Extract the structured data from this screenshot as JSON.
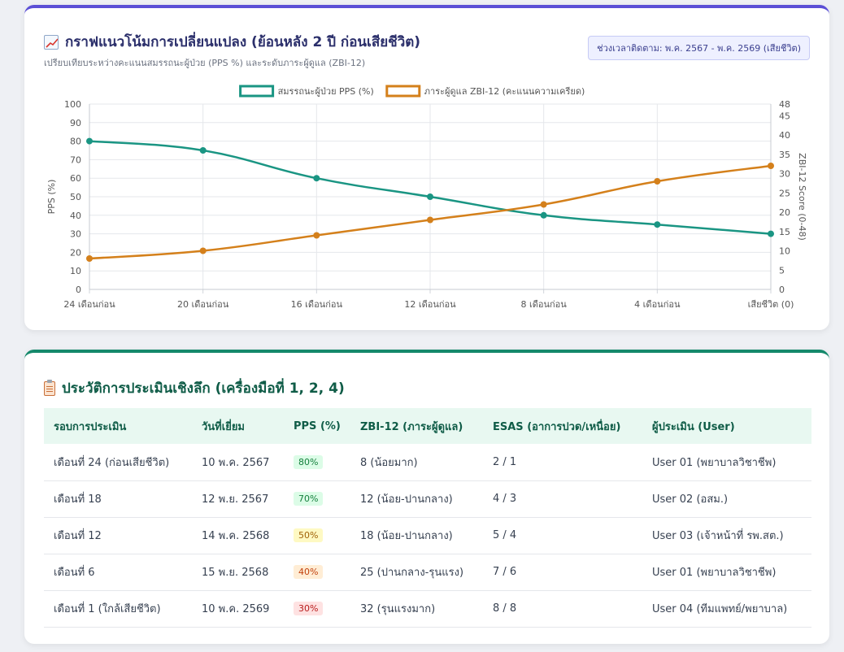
{
  "chart_card": {
    "title": "กราฟแนวโน้มการเปลี่ยนแปลง (ย้อนหลัง 2 ปี ก่อนเสียชีวิต)",
    "title_icon": "chart-up-icon",
    "subtitle": "เปรียบเทียบระหว่างคะแนนสมรรถนะผู้ป่วย (PPS %) และระดับภาระผู้ดูแล (ZBI-12)",
    "period_badge": "ช่วงเวลาติดตาม: พ.ค. 2567 - พ.ค. 2569 (เสียชีวิต)"
  },
  "chart_data": {
    "type": "line",
    "categories": [
      "24 เดือนก่อน",
      "20 เดือนก่อน",
      "16 เดือนก่อน",
      "12 เดือนก่อน",
      "8 เดือนก่อน",
      "4 เดือนก่อน",
      "เสียชีวิต (0)"
    ],
    "series": [
      {
        "name": "สมรรถนะผู้ป่วย PPS (%)",
        "axis": "left",
        "color": "#1a9583",
        "values": [
          80,
          75,
          60,
          50,
          40,
          35,
          30
        ]
      },
      {
        "name": "ภาระผู้ดูแล ZBI-12 (คะแนนความเครียด)",
        "axis": "right",
        "color": "#d4801b",
        "values": [
          8,
          10,
          14,
          18,
          22,
          28,
          32
        ]
      }
    ],
    "ylabel": "PPS (%)",
    "ylabel_right": "ZBI-12 Score (0-48)",
    "ylim": [
      0,
      100
    ],
    "ylim_right": [
      0,
      48
    ],
    "yticks": [
      "0",
      "10",
      "20",
      "30",
      "40",
      "50",
      "60",
      "70",
      "80",
      "90",
      "100"
    ],
    "yticks_right": [
      "0",
      "5",
      "10",
      "15",
      "20",
      "25",
      "30",
      "35",
      "40",
      "45",
      "48"
    ],
    "grid": true,
    "legend_position": "top-center"
  },
  "table_card": {
    "title": "ประวัติการประเมินเชิงลึก (เครื่องมือที่ 1, 2, 4)",
    "title_icon": "clipboard-icon",
    "columns": [
      "รอบการประเมิน",
      "วันที่เยี่ยม",
      "PPS (%)",
      "ZBI-12 (ภาระผู้ดูแล)",
      "ESAS (อาการปวด/เหนื่อย)",
      "ผู้ประเมิน (User)"
    ],
    "rows": [
      {
        "round": "เดือนที่ 24 (ก่อนเสียชีวิต)",
        "date": "10 พ.ค. 2567",
        "pps": "80%",
        "pps_bg": "#dcfce7",
        "pps_fg": "#15803d",
        "zbi": "8 (น้อยมาก)",
        "esas": "2 / 1",
        "assessor": "User 01 (พยาบาลวิชาชีพ)"
      },
      {
        "round": "เดือนที่ 18",
        "date": "12 พ.ย. 2567",
        "pps": "70%",
        "pps_bg": "#dcfce7",
        "pps_fg": "#15803d",
        "zbi": "12 (น้อย-ปานกลาง)",
        "esas": "4 / 3",
        "assessor": "User 02 (อสม.)"
      },
      {
        "round": "เดือนที่ 12",
        "date": "14 พ.ค. 2568",
        "pps": "50%",
        "pps_bg": "#fef9c3",
        "pps_fg": "#a16207",
        "zbi": "18 (น้อย-ปานกลาง)",
        "esas": "5 / 4",
        "assessor": "User 03 (เจ้าหน้าที่ รพ.สต.)"
      },
      {
        "round": "เดือนที่ 6",
        "date": "15 พ.ย. 2568",
        "pps": "40%",
        "pps_bg": "#ffedd5",
        "pps_fg": "#c2410c",
        "zbi": "25 (ปานกลาง-รุนแรง)",
        "esas": "7 / 6",
        "assessor": "User 01 (พยาบาลวิชาชีพ)"
      },
      {
        "round": "เดือนที่ 1 (ใกล้เสียชีวิต)",
        "date": "10 พ.ค. 2569",
        "pps": "30%",
        "pps_bg": "#fee2e2",
        "pps_fg": "#b91c1c",
        "zbi": "32 (รุนแรงมาก)",
        "esas": "8 / 8",
        "assessor": "User 04 (ทีมแพทย์/พยาบาล)"
      }
    ]
  }
}
